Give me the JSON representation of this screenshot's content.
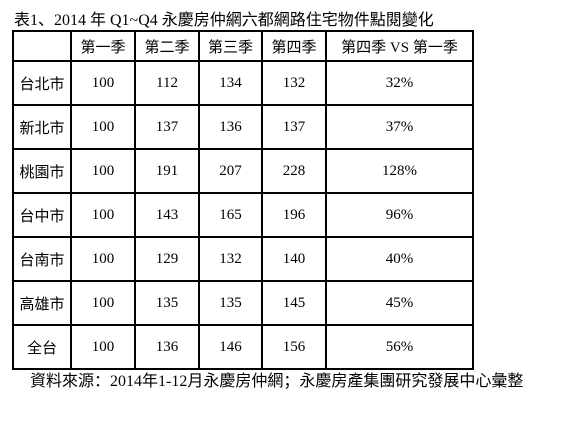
{
  "title": "表1、2014 年 Q1~Q4 永慶房仲網六都網路住宅物件點閱變化",
  "table": {
    "header": [
      "第一季",
      "第二季",
      "第三季",
      "第四季",
      "第四季 VS 第一季"
    ],
    "rows": [
      [
        "台北市",
        100,
        112,
        134,
        132,
        "32%"
      ],
      [
        "新北市",
        100,
        137,
        136,
        137,
        "37%"
      ],
      [
        "桃園市",
        100,
        191,
        207,
        228,
        "128%"
      ],
      [
        "台中市",
        100,
        143,
        165,
        196,
        "96%"
      ],
      [
        "台南市",
        100,
        129,
        132,
        140,
        "40%"
      ],
      [
        "高雄市",
        100,
        135,
        135,
        145,
        "45%"
      ],
      [
        "全台",
        100,
        136,
        146,
        156,
        "56%"
      ]
    ]
  },
  "footer": "資料來源：2014年1-12月永慶房仲網；永慶房產集團研究發展中心彙整"
}
